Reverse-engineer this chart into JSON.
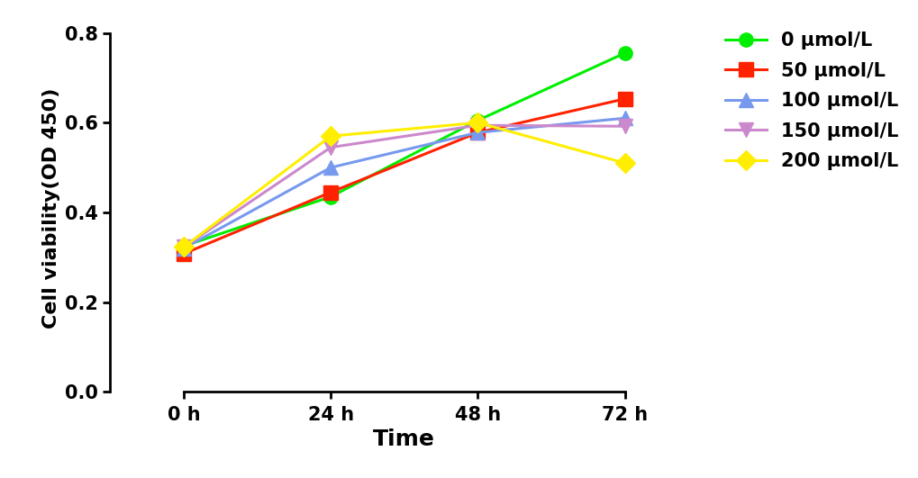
{
  "x_values": [
    1,
    2,
    3,
    4
  ],
  "x_labels": [
    "0 h",
    "24 h",
    "48 h",
    "72 h"
  ],
  "series": [
    {
      "label": "0 μmol/L",
      "color": "#00ee00",
      "marker": "o",
      "markersize": 11,
      "values": [
        0.325,
        0.435,
        0.605,
        0.755
      ]
    },
    {
      "label": "50 μmol/L",
      "color": "#ff2200",
      "marker": "s",
      "markersize": 11,
      "values": [
        0.308,
        0.445,
        0.578,
        0.653
      ]
    },
    {
      "label": "100 μmol/L",
      "color": "#7799ee",
      "marker": "^",
      "markersize": 11,
      "values": [
        0.32,
        0.5,
        0.578,
        0.61
      ]
    },
    {
      "label": "150 μmol/L",
      "color": "#cc88cc",
      "marker": "v",
      "markersize": 11,
      "values": [
        0.323,
        0.545,
        0.594,
        0.592
      ]
    },
    {
      "label": "200 μmol/L",
      "color": "#ffee00",
      "marker": "D",
      "markersize": 11,
      "values": [
        0.323,
        0.57,
        0.6,
        0.51
      ]
    }
  ],
  "xlabel": "Time",
  "ylabel": "Cell viability(OD 450)",
  "ylim": [
    0.0,
    0.82
  ],
  "yticks": [
    0.0,
    0.2,
    0.4,
    0.6,
    0.8
  ],
  "xlim": [
    0.5,
    4.5
  ],
  "xlabel_fontsize": 18,
  "ylabel_fontsize": 16,
  "tick_fontsize": 15,
  "legend_fontsize": 15,
  "linewidth": 2.2,
  "background_color": "#ffffff"
}
